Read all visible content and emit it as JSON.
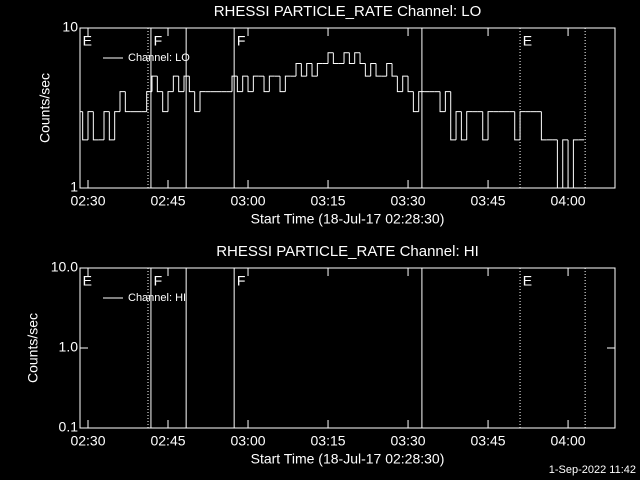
{
  "chart_data": [
    {
      "type": "line",
      "title": "RHESSI PARTICLE_RATE Channel: LO",
      "xlabel": "Start Time (18-Jul-17 02:28:30)",
      "ylabel": "Counts/sec",
      "log_y": true,
      "xlim": [
        0,
        100.3
      ],
      "ylim": [
        1,
        10
      ],
      "xticks": [
        {
          "value": 1.5,
          "label": "02:30"
        },
        {
          "value": 16.5,
          "label": "02:45"
        },
        {
          "value": 31.5,
          "label": "03:00"
        },
        {
          "value": 46.5,
          "label": "03:15"
        },
        {
          "value": 61.5,
          "label": "03:30"
        },
        {
          "value": 76.5,
          "label": "03:45"
        },
        {
          "value": 91.5,
          "label": "04:00"
        }
      ],
      "yticks": [
        1,
        10
      ],
      "events": [
        {
          "x": 12.75,
          "style": "dotted"
        },
        {
          "x": 13.3,
          "style": "solid"
        },
        {
          "x": 19.9,
          "style": "solid"
        },
        {
          "x": 28.9,
          "style": "solid"
        },
        {
          "x": 64.1,
          "style": "solid"
        },
        {
          "x": 82.5,
          "style": "dotted"
        },
        {
          "x": 94.7,
          "style": "dotted"
        }
      ],
      "annotations": [
        {
          "x": 0.5,
          "label": "E"
        },
        {
          "x": 13.8,
          "label": "F"
        },
        {
          "x": 29.4,
          "label": "F"
        },
        {
          "x": 83,
          "label": "E"
        }
      ],
      "series": [
        {
          "name": "Channel: LO",
          "color": "#ffffff",
          "x": [
            0,
            1,
            2,
            3,
            4,
            5,
            6,
            7,
            8,
            9,
            10,
            11,
            12,
            13,
            14,
            15,
            16,
            17,
            18,
            19,
            20,
            21,
            22,
            23,
            24,
            25,
            26,
            27,
            28,
            29,
            30,
            31,
            32,
            33,
            34,
            35,
            36,
            37,
            38,
            39,
            40,
            41,
            42,
            43,
            44,
            45,
            46,
            47,
            48,
            49,
            50,
            51,
            52,
            53,
            54,
            55,
            56,
            57,
            58,
            59,
            60,
            61,
            62,
            63,
            64,
            65,
            66,
            67,
            68,
            69,
            70,
            71,
            72,
            73,
            74,
            75,
            76,
            77,
            78,
            79,
            80,
            81,
            82,
            83,
            84,
            85,
            86,
            87,
            88,
            89,
            90,
            91,
            92,
            93,
            94
          ],
          "values": [
            3,
            2,
            3,
            2,
            2,
            3,
            2,
            3,
            4,
            3,
            3,
            3,
            3,
            4,
            5,
            4,
            3,
            4,
            5,
            4,
            5,
            4,
            3,
            4,
            4,
            4,
            4,
            4,
            4,
            5,
            4,
            5,
            4,
            5,
            5,
            4,
            5,
            5,
            4,
            5,
            5,
            6,
            5,
            6,
            5,
            6,
            6,
            7,
            6,
            6,
            7,
            6,
            7,
            6,
            5,
            6,
            5,
            5,
            6,
            5,
            4,
            5,
            4,
            3,
            4,
            4,
            4,
            4,
            3,
            4,
            2,
            3,
            2,
            3,
            3,
            3,
            2,
            3,
            3,
            3,
            3,
            3,
            2,
            3,
            3,
            3,
            3,
            2,
            2,
            2,
            1,
            2,
            1,
            2,
            2
          ]
        }
      ]
    },
    {
      "type": "line",
      "title": "RHESSI PARTICLE_RATE Channel: HI",
      "xlabel": "Start Time (18-Jul-17 02:28:30)",
      "ylabel": "Counts/sec",
      "log_y": true,
      "xlim": [
        0,
        100.3
      ],
      "ylim": [
        0.1,
        10
      ],
      "xticks": [
        {
          "value": 1.5,
          "label": "02:30"
        },
        {
          "value": 16.5,
          "label": "02:45"
        },
        {
          "value": 31.5,
          "label": "03:00"
        },
        {
          "value": 46.5,
          "label": "03:15"
        },
        {
          "value": 61.5,
          "label": "03:30"
        },
        {
          "value": 76.5,
          "label": "03:45"
        },
        {
          "value": 91.5,
          "label": "04:00"
        }
      ],
      "yticks": [
        {
          "value": 0.1,
          "label": "0.1"
        },
        {
          "value": 1,
          "label": "1.0"
        },
        {
          "value": 10,
          "label": "10.0"
        }
      ],
      "events": [
        {
          "x": 12.75,
          "style": "dotted"
        },
        {
          "x": 13.3,
          "style": "solid"
        },
        {
          "x": 19.9,
          "style": "solid"
        },
        {
          "x": 28.9,
          "style": "solid"
        },
        {
          "x": 64.1,
          "style": "solid"
        },
        {
          "x": 82.5,
          "style": "dotted"
        },
        {
          "x": 94.7,
          "style": "dotted"
        }
      ],
      "annotations": [
        {
          "x": 0.5,
          "label": "E"
        },
        {
          "x": 13.8,
          "label": "F"
        },
        {
          "x": 29.4,
          "label": "F"
        },
        {
          "x": 83,
          "label": "E"
        }
      ],
      "series": [
        {
          "name": "Channel: HI",
          "color": "#ffffff",
          "x": [],
          "values": []
        }
      ]
    }
  ],
  "footer": "1-Sep-2022 11:42"
}
